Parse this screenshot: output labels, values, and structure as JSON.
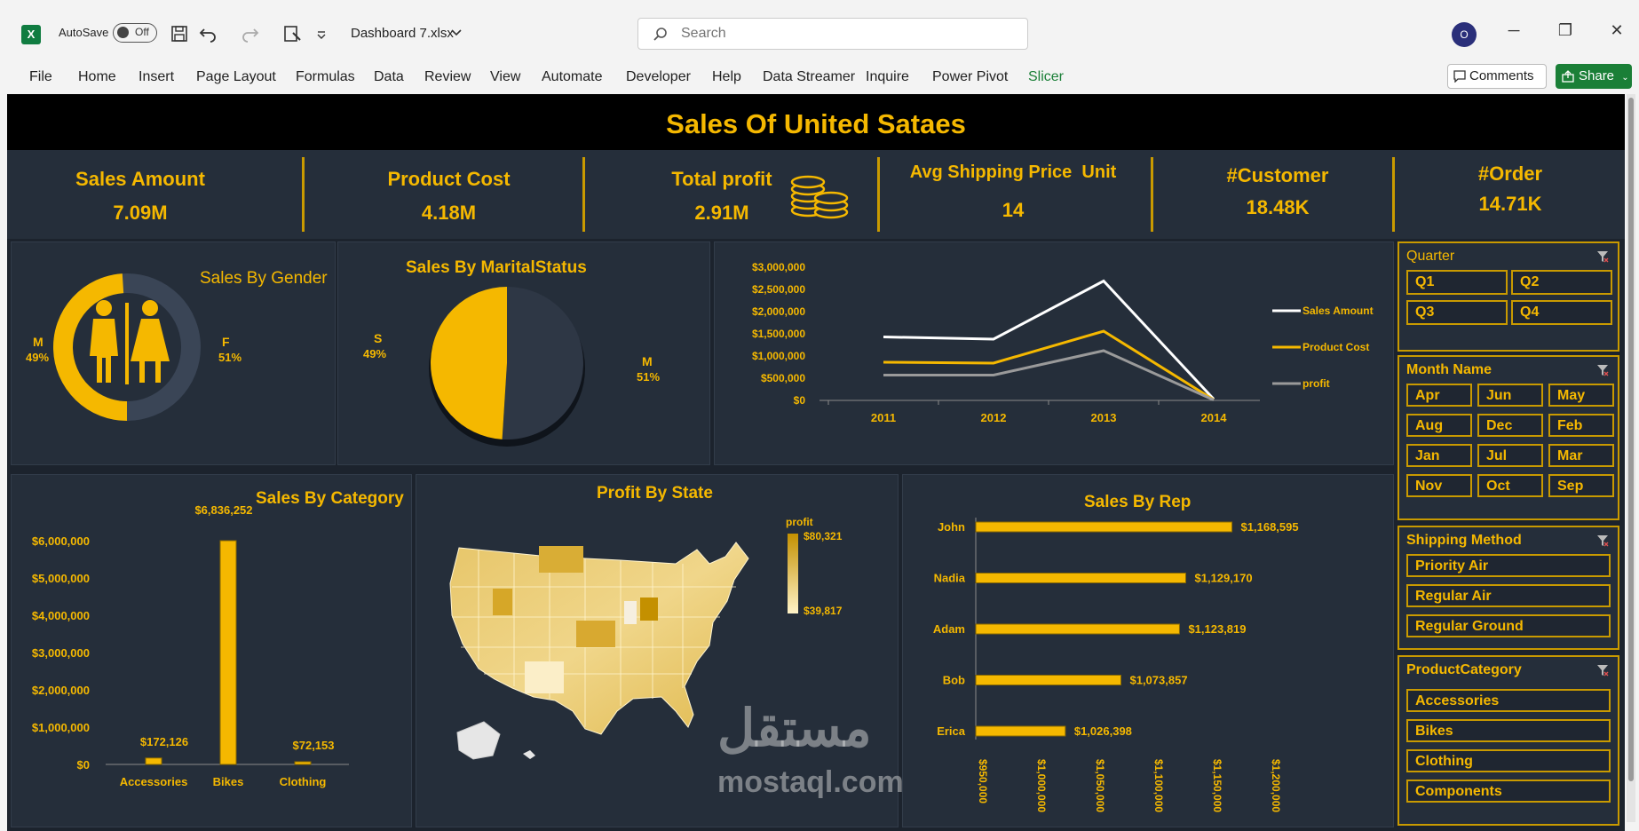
{
  "titlebar": {
    "excel_icon": "X",
    "autosave_label": "AutoSave",
    "autosave_state": "Off",
    "filename": "Dashboard 7.xlsx",
    "search_placeholder": "Search",
    "avatar_initial": "O",
    "minimize": "─",
    "restore": "❐",
    "close": "✕"
  },
  "ribbon": {
    "tabs": [
      "File",
      "Home",
      "Insert",
      "Page Layout",
      "Formulas",
      "Data",
      "Review",
      "View",
      "Automate",
      "Developer",
      "Help",
      "Data Streamer",
      "Inquire",
      "Power Pivot",
      "Slicer"
    ],
    "comments": "Comments",
    "share": "Share"
  },
  "dashboard": {
    "title": "Sales Of United Sataes",
    "kpis": [
      {
        "label": "Sales Amount",
        "value": "7.09M"
      },
      {
        "label": "Product Cost",
        "value": "4.18M"
      },
      {
        "label": "Total profit",
        "value": "2.91M"
      },
      {
        "label": "Avg Shipping Price  Unit",
        "value": "14"
      },
      {
        "label": "#Customer",
        "value": "18.48K"
      },
      {
        "label": "#Order",
        "value": "14.71K"
      }
    ]
  },
  "gender": {
    "title": "Sales By Gender",
    "m_label": "M",
    "m_pct": "49%",
    "f_label": "F",
    "f_pct": "51%"
  },
  "marital": {
    "title": "Sales By MaritalStatus",
    "s_label": "S",
    "s_pct": "49%",
    "m_label": "M",
    "m_pct": "51%"
  },
  "chart_data": [
    {
      "type": "pie",
      "title": "Sales By Gender",
      "categories": [
        "M",
        "F"
      ],
      "values": [
        49,
        51
      ]
    },
    {
      "type": "pie",
      "title": "Sales By MaritalStatus",
      "categories": [
        "S",
        "M"
      ],
      "values": [
        49,
        51
      ]
    },
    {
      "type": "line",
      "x": [
        "2011",
        "2012",
        "2013",
        "2014"
      ],
      "yticks": [
        "$3,000,000",
        "$2,500,000",
        "$2,000,000",
        "$1,500,000",
        "$1,000,000",
        "$500,000",
        "$0"
      ],
      "ylim": [
        0,
        3000000
      ],
      "series": [
        {
          "name": "Sales Amount",
          "values": [
            1430000,
            1380000,
            2690000,
            30000
          ]
        },
        {
          "name": "Product Cost",
          "values": [
            860000,
            840000,
            1560000,
            15000
          ]
        },
        {
          "name": "profit",
          "values": [
            570000,
            570000,
            1120000,
            10000
          ]
        }
      ]
    },
    {
      "type": "bar",
      "title": "Sales By Category",
      "categories": [
        "Accessories",
        "Bikes",
        "Clothing"
      ],
      "values": [
        172126,
        6836252,
        72153
      ],
      "value_labels": [
        "$172,126",
        "$6,836,252",
        "$72,153"
      ],
      "yticks": [
        "$6,000,000",
        "$5,000,000",
        "$4,000,000",
        "$3,000,000",
        "$2,000,000",
        "$1,000,000",
        "$0"
      ],
      "ylim": [
        0,
        6000000
      ]
    },
    {
      "type": "bar",
      "title": "Sales By Rep",
      "orientation": "horizontal",
      "categories": [
        "John",
        "Nadia",
        "Adam",
        "Bob",
        "Erica"
      ],
      "values": [
        1168595,
        1129170,
        1123819,
        1073857,
        1026398
      ],
      "value_labels": [
        "$1,168,595",
        "$1,129,170",
        "$1,123,819",
        "$1,073,857",
        "$1,026,398"
      ],
      "xticks": [
        "$950,000",
        "$1,000,000",
        "$1,050,000",
        "$1,100,000",
        "$1,150,000",
        "$1,200,000"
      ],
      "xlim": [
        950000,
        1200000
      ]
    }
  ],
  "map": {
    "title": "Profit By State",
    "legend_title": "profit",
    "legend_max": "$80,321",
    "legend_min": "$39,817",
    "colors": {
      "low": "#fff3c8",
      "high": "#c49000"
    }
  },
  "slicers": {
    "quarter": {
      "title": "Quarter",
      "items": [
        "Q1",
        "Q2",
        "Q3",
        "Q4"
      ]
    },
    "month": {
      "title": "Month Name",
      "items": [
        "Apr",
        "Jun",
        "May",
        "Aug",
        "Dec",
        "Feb",
        "Jan",
        "Jul",
        "Mar",
        "Nov",
        "Oct",
        "Sep"
      ]
    },
    "shipping": {
      "title": "Shipping Method",
      "items": [
        "Priority Air",
        "Regular Air",
        "Regular Ground"
      ]
    },
    "category": {
      "title": "ProductCategory",
      "items": [
        "Accessories",
        "Bikes",
        "Clothing",
        "Components"
      ]
    }
  },
  "watermark": {
    "arabic": "مستقل",
    "latin": "mostaql.com"
  },
  "colors": {
    "accent": "#f5b800",
    "panel": "#252e3a",
    "sheet": "#1c232d",
    "white_line": "#ffffff",
    "grey_line": "#9a9a9a"
  }
}
